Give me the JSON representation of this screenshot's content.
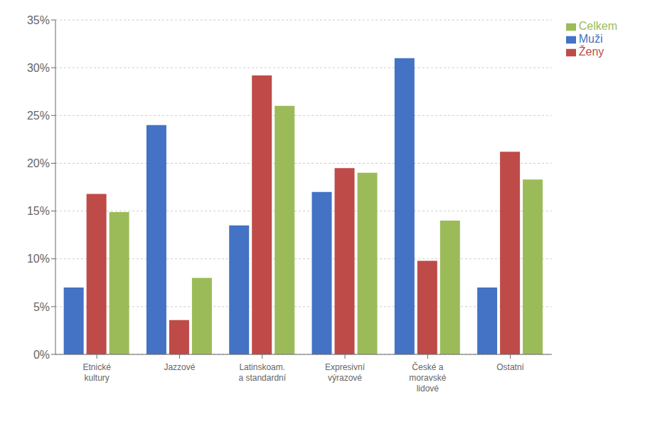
{
  "chart_data": {
    "type": "bar",
    "categories": [
      "Etnické\nkultury",
      "Jazzové",
      "Latinskoam.\na standardní",
      "Expresivní\nvýrazové",
      "České a\nmoravské\nlidové",
      "Ostatní"
    ],
    "series": [
      {
        "name": "Muži",
        "color": "#4472C4",
        "values": [
          0.07,
          0.24,
          0.135,
          0.17,
          0.31,
          0.07
        ]
      },
      {
        "name": "Ženy",
        "color": "#BE4B48",
        "values": [
          0.168,
          0.036,
          0.292,
          0.195,
          0.098,
          0.212
        ]
      },
      {
        "name": "Celkem",
        "color": "#9BBB59",
        "values": [
          0.149,
          0.08,
          0.26,
          0.19,
          0.14,
          0.183
        ]
      }
    ],
    "ylim": [
      0,
      0.35
    ],
    "yticks": [
      {
        "value": 0.0,
        "label": "0%"
      },
      {
        "value": 0.05,
        "label": "5%"
      },
      {
        "value": 0.1,
        "label": "10%"
      },
      {
        "value": 0.15,
        "label": "15%"
      },
      {
        "value": 0.2,
        "label": "20%"
      },
      {
        "value": 0.25,
        "label": "25%"
      },
      {
        "value": 0.3,
        "label": "30%"
      },
      {
        "value": 0.35,
        "label": "35%"
      }
    ],
    "grid": true,
    "legend": "upper right"
  }
}
